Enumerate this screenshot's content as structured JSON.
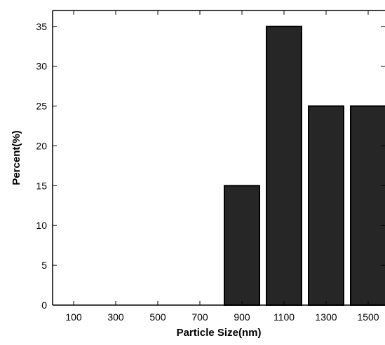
{
  "chart_data": {
    "type": "bar",
    "title": "",
    "xlabel": "Particle Size(nm)",
    "ylabel": "Percent(%)",
    "categories": [
      "100",
      "300",
      "500",
      "700",
      "900",
      "1100",
      "1300",
      "1500"
    ],
    "values": [
      0,
      0,
      0,
      0,
      15,
      35,
      25,
      25
    ],
    "ylim": [
      0,
      37
    ],
    "yticks": [
      0,
      5,
      10,
      15,
      20,
      25,
      30,
      35
    ],
    "bar_color": "#262626",
    "bar_edge_color": "#000000",
    "grid": false,
    "legend": "none"
  }
}
